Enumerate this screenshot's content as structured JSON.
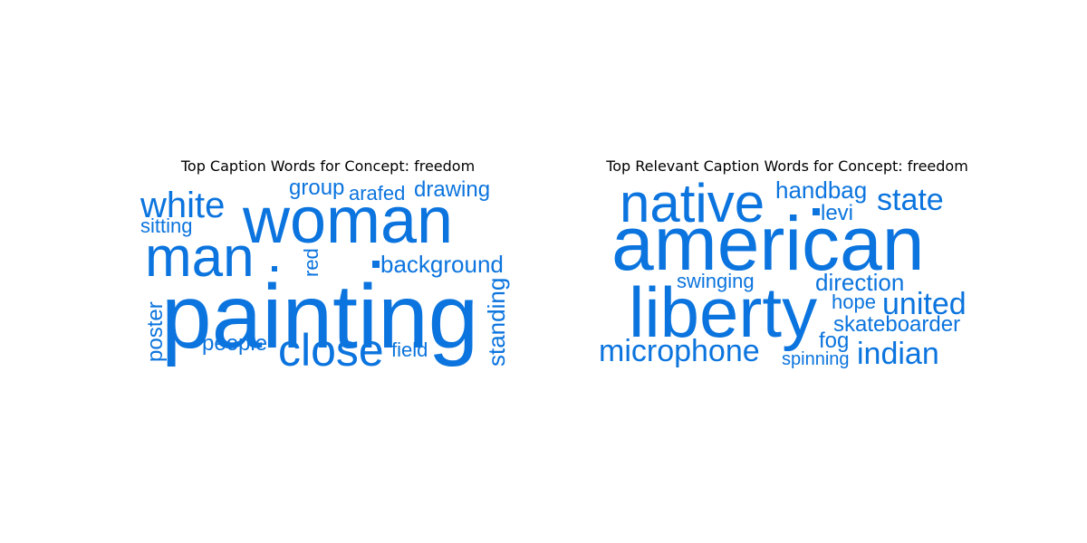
{
  "colors": {
    "word": "#0b74de",
    "title": "#000000",
    "background": "#ffffff"
  },
  "chart_data": [
    {
      "type": "wordcloud",
      "title": "Top Caption Words for Concept: freedom",
      "words": [
        "painting",
        "woman",
        "man",
        "close",
        "white",
        "background",
        "drawing",
        "group",
        "arafed",
        "standing",
        "poster",
        "people",
        "field",
        "red",
        "sitting"
      ]
    },
    {
      "type": "wordcloud",
      "title": "Top Relevant Caption Words for Concept: freedom",
      "words": [
        "american",
        "liberty",
        "native",
        "microphone",
        "indian",
        "state",
        "united",
        "handbag",
        "direction",
        "skateboarder",
        "swinging",
        "levi",
        "hope",
        "fog",
        "spinning"
      ]
    }
  ]
}
